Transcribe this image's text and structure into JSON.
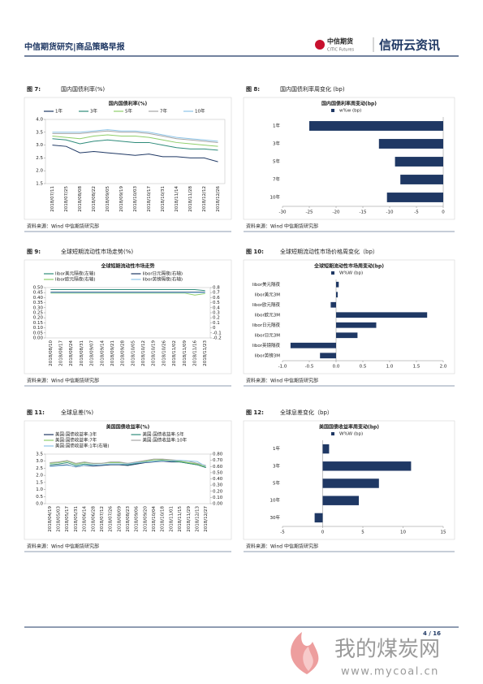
{
  "header": {
    "title": "中信期货研究|商品策略早报",
    "logo_cn": "中信期货",
    "logo_en": "CITIC Futures",
    "brand": "信研云资讯"
  },
  "figures": [
    {
      "label": "图 7:",
      "caption": "国内国债利率(%)",
      "source": "资料来源：Wind  中信期货研究部",
      "chart_data": {
        "type": "line",
        "title": "国内国债利率(%)",
        "categories": [
          "2018/07/11",
          "2018/07/25",
          "2018/08/08",
          "2018/08/22",
          "2018/09/05",
          "2018/09/19",
          "2018/10/03",
          "2018/10/17",
          "2018/10/31",
          "2018/11/14",
          "2018/11/28",
          "2018/12/12",
          "2018/12/26"
        ],
        "ylim": [
          1.5,
          4.0
        ],
        "yticks": [
          1.5,
          {
            "value": 2,
            "label": "2.0"
          },
          2.5,
          {
            "value": 3,
            "label": "3.0"
          },
          3.5,
          {
            "value": 4,
            "label": "4.0"
          }
        ],
        "series": [
          {
            "name": "1年",
            "color": "#1f3864",
            "values": [
              3.0,
              2.95,
              2.7,
              2.75,
              2.7,
              2.65,
              2.6,
              2.65,
              2.55,
              2.55,
              2.5,
              2.5,
              2.35
            ]
          },
          {
            "name": "3年",
            "color": "#2e8b7a",
            "values": [
              3.25,
              3.2,
              3.05,
              3.15,
              3.2,
              3.15,
              3.1,
              3.1,
              3.0,
              2.9,
              2.85,
              2.85,
              2.8
            ]
          },
          {
            "name": "5年",
            "color": "#8fce6a",
            "values": [
              3.35,
              3.3,
              3.25,
              3.35,
              3.4,
              3.35,
              3.35,
              3.3,
              3.2,
              3.1,
              3.05,
              3.0,
              2.95
            ]
          },
          {
            "name": "7年",
            "color": "#a6a6a6",
            "values": [
              3.45,
              3.45,
              3.45,
              3.5,
              3.55,
              3.5,
              3.5,
              3.45,
              3.35,
              3.25,
              3.2,
              3.15,
              3.1
            ]
          },
          {
            "name": "10年",
            "color": "#8ec5e8",
            "values": [
              3.5,
              3.5,
              3.5,
              3.55,
              3.6,
              3.55,
              3.55,
              3.5,
              3.4,
              3.3,
              3.25,
              3.2,
              3.15
            ]
          }
        ]
      }
    },
    {
      "label": "图 8:",
      "caption": "国内国债利率周变化 (bp)",
      "source": "资料来源：Wind  中信期货研究部",
      "chart_data": {
        "type": "hbar",
        "title": "国内国债利率周变动(bp)",
        "categories": [
          "1年",
          "3年",
          "5年",
          "7年",
          "10年"
        ],
        "series": [
          {
            "name": "w%w (bp)",
            "color": "#1f3864",
            "values": [
              -25,
              -12,
              -9,
              -8,
              -10.5
            ]
          }
        ],
        "xlim": [
          -30,
          0
        ],
        "xticks": [
          -30,
          -25,
          -20,
          -15,
          -10,
          -5,
          0
        ]
      }
    },
    {
      "label": "图 9:",
      "caption": "全球短期流动性市场走势(%)",
      "source": "资料来源：Wind  中信期货研究部",
      "chart_data": {
        "type": "line",
        "title": "全球短期流动性市场走势",
        "categories": [
          "2018/08/10",
          "2018/08/17",
          "2018/08/24",
          "2018/08/31",
          "2018/09/07",
          "2018/09/14",
          "2018/09/21",
          "2018/09/28",
          "2018/10/05",
          "2018/10/12",
          "2018/10/19",
          "2018/10/26",
          "2018/11/02",
          "2018/11/09",
          "2018/11/16",
          "2018/11/23"
        ],
        "ylim": [
          0,
          0.5
        ],
        "yticks": [
          {
            "value": 0,
            "label": "0.00"
          },
          0.05,
          {
            "value": 0.1,
            "label": "0.10"
          },
          0.15,
          {
            "value": 0.2,
            "label": "0.20"
          },
          0.25,
          {
            "value": 0.3,
            "label": "0.30"
          },
          0.35,
          {
            "value": 0.4,
            "label": "0.40"
          },
          0.45,
          {
            "value": 0.5,
            "label": "0.50"
          }
        ],
        "y2lim": [
          -0.2,
          0.8
        ],
        "y2ticks": [
          -0.2,
          -0.1,
          0,
          0.1,
          0.2,
          0.3,
          0.4,
          0.5,
          0.6,
          0.7,
          0.8
        ],
        "series": [
          {
            "name": "libor美元隔夜(左轴)",
            "color": "#2e8b7a",
            "values": [
              0.48,
              0.48,
              0.48,
              0.48,
              0.48,
              0.48,
              0.48,
              0.48,
              0.48,
              0.48,
              0.48,
              0.48,
              0.48,
              0.48,
              0.48,
              0.47
            ]
          },
          {
            "name": "libor日元隔夜(右轴)",
            "color": "#1f3864",
            "values": [
              0.71,
              0.71,
              0.71,
              0.71,
              0.71,
              0.71,
              0.71,
              0.71,
              0.71,
              0.71,
              0.71,
              0.71,
              0.71,
              0.71,
              0.71,
              0.71
            ],
            "axis": "y2"
          },
          {
            "name": "libor欧元隔夜(右轴)",
            "color": "#8fce6a",
            "values": [
              0.69,
              0.69,
              0.69,
              0.69,
              0.69,
              0.69,
              0.69,
              0.69,
              0.69,
              0.69,
              0.69,
              0.69,
              0.69,
              0.69,
              0.65,
              0.68
            ],
            "axis": "y2"
          },
          {
            "name": "libor英镑隔夜(右轴)",
            "color": "#8ec5e8",
            "values": [
              0.7,
              0.7,
              0.7,
              0.7,
              0.7,
              0.7,
              0.7,
              0.7,
              0.7,
              0.7,
              0.7,
              0.7,
              0.7,
              0.7,
              0.7,
              0.7
            ],
            "axis": "y2"
          }
        ]
      }
    },
    {
      "label": "图 10:",
      "caption": "全球短期流动性市场价格周变化（bp）",
      "source": "资料来源：Wind  中信期货研究部",
      "chart_data": {
        "type": "hbar",
        "title": "全球短期流动性市场周变动(bp)",
        "categories": [
          "libor美元隔夜",
          "libor美元3M",
          "libor欧元隔夜",
          "libor欧元3M",
          "libor日元隔夜",
          "libor日元3M",
          "libor英镑隔夜",
          "libor英镑3M"
        ],
        "series": [
          {
            "name": "W%W (bp)",
            "color": "#1f3864",
            "values": [
              0.05,
              0.03,
              -0.1,
              1.7,
              0.75,
              0.4,
              -0.85,
              -0.3
            ]
          }
        ],
        "xlim": [
          -1,
          2
        ],
        "xticks": [
          {
            "value": -1,
            "label": "-1.0"
          },
          -0.5,
          {
            "value": 0,
            "label": "0.0"
          },
          0.5,
          {
            "value": 1,
            "label": "1.0"
          },
          1.5,
          {
            "value": 2,
            "label": "2.0"
          }
        ]
      }
    },
    {
      "label": "图 11:",
      "caption": "全球息差(%)",
      "source": "资料来源：Wind  中信期货研究部",
      "chart_data": {
        "type": "line",
        "title": "美国国债收益率(%)",
        "categories": [
          "2018/04/19",
          "2018/05/03",
          "2018/05/17",
          "2018/05/31",
          "2018/06/14",
          "2018/06/28",
          "2018/07/12",
          "2018/07/26",
          "2018/08/09",
          "2018/08/23",
          "2018/09/06",
          "2018/09/20",
          "2018/10/04",
          "2018/10/18",
          "2018/11/01",
          "2018/11/15",
          "2018/11/29",
          "2018/12/13",
          "2018/12/27"
        ],
        "ylim": [
          0,
          3.5
        ],
        "yticks": [
          {
            "value": 0,
            "label": "0.0"
          },
          0.5,
          {
            "value": 1,
            "label": "1.0"
          },
          1.5,
          {
            "value": 2,
            "label": "2.0"
          },
          2.5,
          {
            "value": 3,
            "label": "3.0"
          },
          3.5
        ],
        "y2lim": [
          0,
          0.8
        ],
        "y2ticks": [
          {
            "value": 0,
            "label": "0.00"
          },
          {
            "value": 0.1,
            "label": "0.10"
          },
          {
            "value": 0.2,
            "label": "0.20"
          },
          {
            "value": 0.3,
            "label": "0.30"
          },
          {
            "value": 0.4,
            "label": "0.40"
          },
          {
            "value": 0.5,
            "label": "0.50"
          },
          {
            "value": 0.6,
            "label": "0.60"
          },
          {
            "value": 0.7,
            "label": "0.70"
          },
          {
            "value": 0.8,
            "label": "0.80"
          }
        ],
        "series": [
          {
            "name": "美国:国债收益率:3年",
            "color": "#1f3864",
            "values": [
              2.65,
              2.7,
              2.75,
              2.6,
              2.7,
              2.65,
              2.7,
              2.75,
              2.75,
              2.7,
              2.8,
              2.9,
              2.95,
              3.0,
              2.95,
              2.95,
              2.85,
              2.75,
              2.55
            ]
          },
          {
            "name": "美国:国债收益率:5年",
            "color": "#2e8b7a",
            "values": [
              2.75,
              2.8,
              2.9,
              2.7,
              2.8,
              2.75,
              2.75,
              2.8,
              2.8,
              2.75,
              2.85,
              2.95,
              3.0,
              3.05,
              3.0,
              2.95,
              2.85,
              2.75,
              2.55
            ]
          },
          {
            "name": "美国:国债收益率:7年",
            "color": "#8fce6a",
            "values": [
              2.85,
              2.9,
              3.0,
              2.8,
              2.9,
              2.85,
              2.85,
              2.9,
              2.9,
              2.85,
              2.9,
              3.0,
              3.1,
              3.1,
              3.05,
              3.0,
              2.9,
              2.8,
              2.6
            ]
          },
          {
            "name": "美国:国债收益率:10年",
            "color": "#a6a6a6",
            "values": [
              2.9,
              2.95,
              3.05,
              2.85,
              2.95,
              2.85,
              2.85,
              2.95,
              2.95,
              2.85,
              2.95,
              3.05,
              3.15,
              3.15,
              3.1,
              3.05,
              3.0,
              2.85,
              2.7
            ]
          },
          {
            "name": "美国:国债收益率:1年(右轴)",
            "color": "#8ec5e8",
            "values": [
              0.6,
              0.61,
              0.62,
              0.6,
              0.62,
              0.62,
              0.63,
              0.64,
              0.64,
              0.64,
              0.66,
              0.67,
              0.68,
              0.69,
              0.69,
              0.7,
              0.69,
              0.68,
              0.6
            ],
            "axis": "y2"
          }
        ]
      }
    },
    {
      "label": "图 12:",
      "caption": "全球息差变化（bp）",
      "source": "资料来源：Wind  中信期货研究部",
      "chart_data": {
        "type": "hbar",
        "title": "美国国债收益率周变动(bp)",
        "categories": [
          "1年",
          "3年",
          "5年",
          "10年",
          "30年"
        ],
        "series": [
          {
            "name": "W%W (bp)",
            "color": "#1f3864",
            "values": [
              0.8,
              11,
              7,
              4.5,
              -1
            ]
          }
        ],
        "xlim": [
          -5,
          15
        ],
        "xticks": [
          -5,
          0,
          5,
          10,
          15
        ]
      }
    }
  ],
  "footer": {
    "page": "4 / 16"
  },
  "watermark": {
    "cn": "我的煤炭网",
    "url": "www.mycoal.cn"
  }
}
